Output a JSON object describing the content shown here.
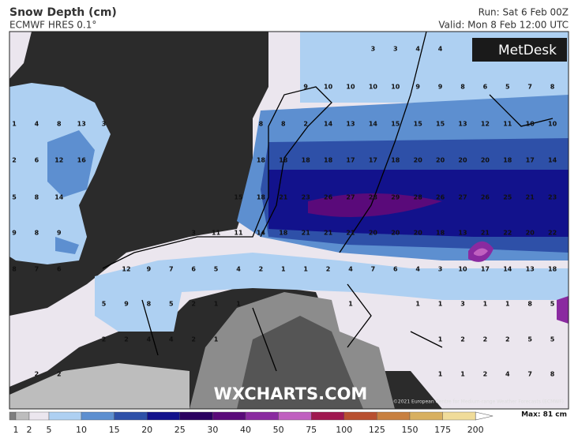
{
  "header": {
    "title": "Snow Depth (cm)",
    "subtitle": "ECMWF HRES 0.1°",
    "run": "Run: Sat 6 Feb 00Z",
    "valid": "Valid: Mon 8 Feb 12:00 UTC"
  },
  "logo": "MetDesk",
  "watermark": "WXCHARTS.COM",
  "credit": "©2021 European Centre for Medium-range Weather Forecasts (ECMWF)",
  "grid": {
    "rows": [
      [
        null,
        null,
        null,
        null,
        null,
        null,
        null,
        null,
        null,
        null,
        null,
        null,
        null,
        null,
        null,
        null,
        3,
        3,
        4,
        4,
        null,
        null,
        null,
        null,
        null
      ],
      [
        null,
        null,
        null,
        null,
        null,
        null,
        null,
        null,
        null,
        null,
        null,
        null,
        null,
        9,
        10,
        10,
        10,
        10,
        9,
        9,
        8,
        6,
        5,
        7,
        8
      ],
      [
        1,
        4,
        8,
        13,
        3,
        null,
        null,
        null,
        null,
        null,
        null,
        8,
        8,
        2,
        14,
        13,
        14,
        15,
        15,
        15,
        13,
        12,
        11,
        10,
        10
      ],
      [
        2,
        6,
        12,
        16,
        null,
        null,
        null,
        null,
        null,
        null,
        null,
        18,
        18,
        18,
        18,
        17,
        17,
        18,
        20,
        20,
        20,
        20,
        18,
        17,
        14
      ],
      [
        5,
        8,
        14,
        null,
        null,
        null,
        null,
        null,
        null,
        null,
        15,
        18,
        21,
        23,
        26,
        27,
        28,
        29,
        28,
        26,
        27,
        26,
        25,
        21,
        23
      ],
      [
        9,
        8,
        9,
        null,
        null,
        null,
        null,
        null,
        3,
        11,
        11,
        14,
        18,
        21,
        21,
        21,
        20,
        20,
        20,
        18,
        13,
        21,
        22,
        20,
        22
      ],
      [
        8,
        7,
        6,
        null,
        null,
        12,
        9,
        7,
        6,
        5,
        4,
        2,
        1,
        1,
        2,
        4,
        7,
        6,
        4,
        3,
        10,
        17,
        14,
        13,
        18
      ],
      [
        null,
        null,
        null,
        null,
        5,
        9,
        8,
        5,
        2,
        1,
        1,
        null,
        null,
        null,
        null,
        1,
        null,
        null,
        1,
        1,
        3,
        1,
        1,
        8,
        5
      ],
      [
        null,
        null,
        null,
        null,
        2,
        2,
        4,
        4,
        2,
        1,
        null,
        null,
        null,
        null,
        null,
        null,
        null,
        null,
        null,
        1,
        2,
        2,
        2,
        5,
        5
      ],
      [
        null,
        2,
        2,
        null,
        null,
        null,
        null,
        null,
        null,
        null,
        null,
        null,
        null,
        null,
        null,
        null,
        null,
        null,
        null,
        1,
        1,
        2,
        4,
        7,
        8
      ]
    ]
  },
  "legend": {
    "labels": [
      1,
      2,
      5,
      10,
      15,
      20,
      25,
      30,
      40,
      50,
      75,
      100,
      125,
      150,
      175,
      200
    ],
    "colors": [
      "#7f7f7f",
      "#bdbdbd",
      "#ebe6ee",
      "#aed0f2",
      "#5d8fd0",
      "#2e50a8",
      "#12128c",
      "#2a0060",
      "#5a0a7a",
      "#8a2aa0",
      "#c060c0",
      "#a01850",
      "#b85030",
      "#c88040",
      "#d8b060",
      "#f0dc9a"
    ],
    "max": "Max: 81 cm"
  }
}
